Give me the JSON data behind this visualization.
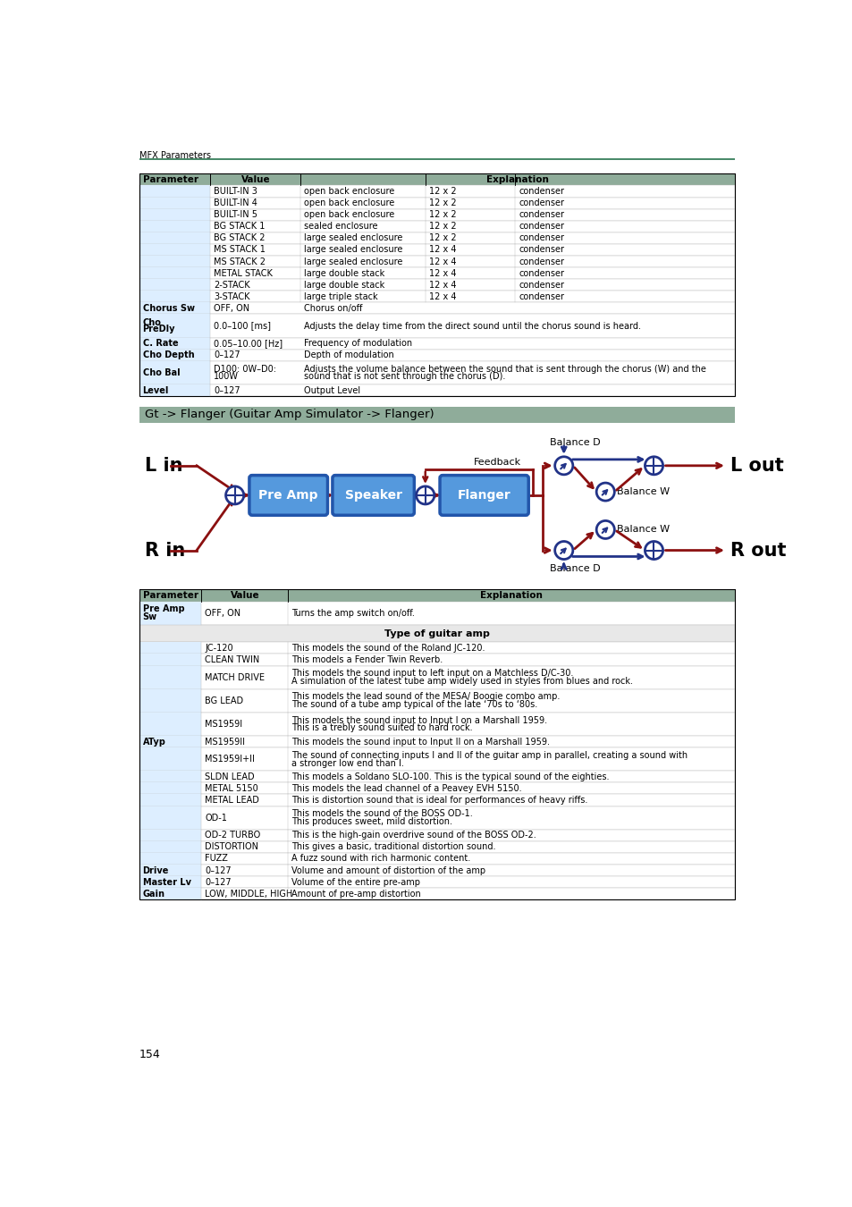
{
  "page_header": "MFX Parameters",
  "header_line_color": "#4a8a6a",
  "page_number": "154",
  "section_header": "Gt -> Flanger (Guitar Amp Simulator -> Flanger)",
  "section_bg": "#8fac9a",
  "table1_header_bg": "#8fac9a",
  "table1_rows": [
    [
      "BUILT-IN 3",
      "open back enclosure",
      "12 x 2",
      "condenser"
    ],
    [
      "BUILT-IN 4",
      "open back enclosure",
      "12 x 2",
      "condenser"
    ],
    [
      "BUILT-IN 5",
      "open back enclosure",
      "12 x 2",
      "condenser"
    ],
    [
      "BG STACK 1",
      "sealed enclosure",
      "12 x 2",
      "condenser"
    ],
    [
      "BG STACK 2",
      "large sealed enclosure",
      "12 x 2",
      "condenser"
    ],
    [
      "MS STACK 1",
      "large sealed enclosure",
      "12 x 4",
      "condenser"
    ],
    [
      "MS STACK 2",
      "large sealed enclosure",
      "12 x 4",
      "condenser"
    ],
    [
      "METAL STACK",
      "large double stack",
      "12 x 4",
      "condenser"
    ],
    [
      "2-STACK",
      "large double stack",
      "12 x 4",
      "condenser"
    ],
    [
      "3-STACK",
      "large triple stack",
      "12 x 4",
      "condenser"
    ]
  ],
  "chorus_rows": [
    {
      "param": "Chorus Sw",
      "value": "OFF, ON",
      "explanation": "Chorus on/off",
      "bold_param": true,
      "rh_mul": 1
    },
    {
      "param": "Cho\nPreDly",
      "value": "0.0–100 [ms]",
      "explanation": "Adjusts the delay time from the direct sound until the chorus sound is heard.",
      "bold_param": true,
      "rh_mul": 2
    },
    {
      "param": "C. Rate",
      "value": "0.05–10.00 [Hz]",
      "explanation": "Frequency of modulation",
      "bold_param": true,
      "rh_mul": 1
    },
    {
      "param": "Cho Depth",
      "value": "0–127",
      "explanation": "Depth of modulation",
      "bold_param": true,
      "rh_mul": 1
    },
    {
      "param": "Cho Bal",
      "value": "D100: 0W–D0:\n100W",
      "explanation": "Adjusts the volume balance between the sound that is sent through the chorus (W) and the\nsound that is not sent through the chorus (D).",
      "bold_param": true,
      "rh_mul": 2
    },
    {
      "param": "Level",
      "value": "0–127",
      "explanation": "Output Level",
      "bold_param": true,
      "rh_mul": 1
    }
  ],
  "table2_header_bg": "#8fac9a",
  "table2_rows": [
    {
      "param": "Pre Amp\nSw",
      "value": "OFF, ON",
      "explanation": "Turns the amp switch on/off.",
      "bold": true,
      "rh_mul": 2,
      "subheader": false
    },
    {
      "param": "",
      "value": "",
      "explanation": "Type of guitar amp",
      "bold": false,
      "rh_mul": 1.5,
      "subheader": true
    },
    {
      "param": "",
      "value": "JC-120",
      "explanation": "This models the sound of the Roland JC-120.",
      "bold": false,
      "rh_mul": 1,
      "subheader": false
    },
    {
      "param": "",
      "value": "CLEAN TWIN",
      "explanation": "This models a Fender Twin Reverb.",
      "bold": false,
      "rh_mul": 1,
      "subheader": false
    },
    {
      "param": "",
      "value": "MATCH DRIVE",
      "explanation": "This models the sound input to left input on a Matchless D/C-30.\nA simulation of the latest tube amp widely used in styles from blues and rock.",
      "bold": false,
      "rh_mul": 2,
      "subheader": false
    },
    {
      "param": "",
      "value": "BG LEAD",
      "explanation": "This models the lead sound of the MESA/ Boogie combo amp.\nThe sound of a tube amp typical of the late ‘70s to ‘80s.",
      "bold": false,
      "rh_mul": 2,
      "subheader": false
    },
    {
      "param": "",
      "value": "MS1959I",
      "explanation": "This models the sound input to Input I on a Marshall 1959.\nThis is a trebly sound suited to hard rock.",
      "bold": false,
      "rh_mul": 2,
      "subheader": false
    },
    {
      "param": "ATyp",
      "value": "MS1959II",
      "explanation": "This models the sound input to Input II on a Marshall 1959.",
      "bold": true,
      "rh_mul": 1,
      "subheader": false
    },
    {
      "param": "",
      "value": "MS1959I+II",
      "explanation": "The sound of connecting inputs I and II of the guitar amp in parallel, creating a sound with\na stronger low end than I.",
      "bold": false,
      "rh_mul": 2,
      "subheader": false
    },
    {
      "param": "",
      "value": "SLDN LEAD",
      "explanation": "This models a Soldano SLO-100. This is the typical sound of the eighties.",
      "bold": false,
      "rh_mul": 1,
      "subheader": false
    },
    {
      "param": "",
      "value": "METAL 5150",
      "explanation": "This models the lead channel of a Peavey EVH 5150.",
      "bold": false,
      "rh_mul": 1,
      "subheader": false
    },
    {
      "param": "",
      "value": "METAL LEAD",
      "explanation": "This is distortion sound that is ideal for performances of heavy riffs.",
      "bold": false,
      "rh_mul": 1,
      "subheader": false
    },
    {
      "param": "",
      "value": "OD-1",
      "explanation": "This models the sound of the BOSS OD-1.\nThis produces sweet, mild distortion.",
      "bold": false,
      "rh_mul": 2,
      "subheader": false
    },
    {
      "param": "",
      "value": "OD-2 TURBO",
      "explanation": "This is the high-gain overdrive sound of the BOSS OD-2.",
      "bold": false,
      "rh_mul": 1,
      "subheader": false
    },
    {
      "param": "",
      "value": "DISTORTION",
      "explanation": "This gives a basic, traditional distortion sound.",
      "bold": false,
      "rh_mul": 1,
      "subheader": false
    },
    {
      "param": "",
      "value": "FUZZ",
      "explanation": "A fuzz sound with rich harmonic content.",
      "bold": false,
      "rh_mul": 1,
      "subheader": false
    },
    {
      "param": "Drive",
      "value": "0–127",
      "explanation": "Volume and amount of distortion of the amp",
      "bold": true,
      "rh_mul": 1,
      "subheader": false
    },
    {
      "param": "Master Lv",
      "value": "0–127",
      "explanation": "Volume of the entire pre-amp",
      "bold": true,
      "rh_mul": 1,
      "subheader": false
    },
    {
      "param": "Gain",
      "value": "LOW, MIDDLE, HIGH",
      "explanation": "Amount of pre-amp distortion",
      "bold": true,
      "rh_mul": 1,
      "subheader": false
    }
  ],
  "dark_red": "#8B1010",
  "blue_box_face": "#5599dd",
  "blue_box_edge": "#2255aa",
  "blue_circle": "#223388",
  "light_blue_bg": "#ddeeff"
}
